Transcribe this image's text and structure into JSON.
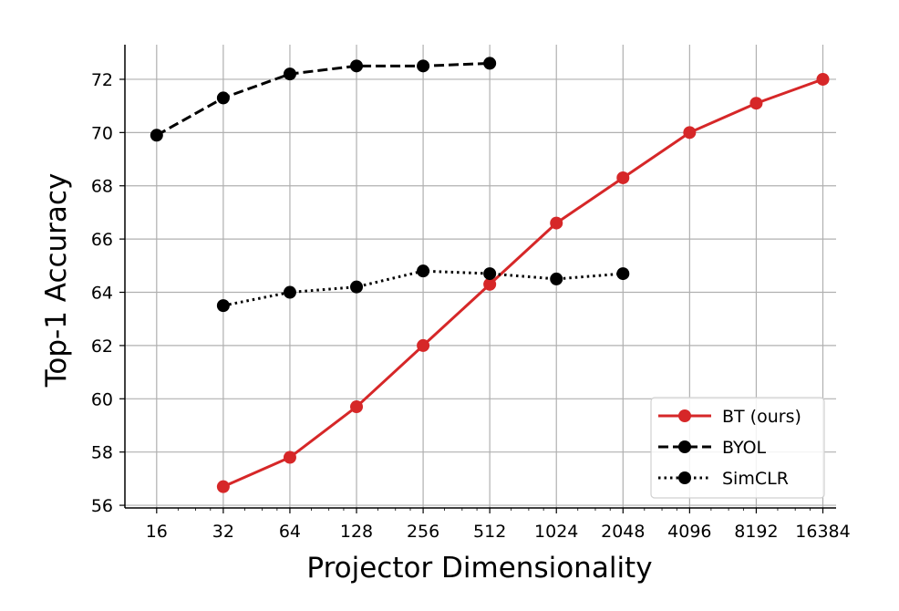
{
  "chart_data": {
    "type": "line",
    "xlabel": "Projector Dimensionality",
    "ylabel": "Top-1 Accuracy",
    "x_scale": "log2",
    "x_ticks": [
      "16",
      "32",
      "64",
      "128",
      "256",
      "512",
      "1024",
      "2048",
      "4096",
      "8192",
      "16384"
    ],
    "x_tick_values": [
      16,
      32,
      64,
      128,
      256,
      512,
      1024,
      2048,
      4096,
      8192,
      16384
    ],
    "y_ticks": [
      "56",
      "58",
      "60",
      "62",
      "64",
      "66",
      "68",
      "70",
      "72"
    ],
    "ylim": [
      55.9,
      73.3
    ],
    "xlim": [
      11.5,
      18800
    ],
    "grid": true,
    "legend_position": "lower-right",
    "series": [
      {
        "name": "BT (ours)",
        "color": "#d62728",
        "linestyle": "solid",
        "x": [
          32,
          64,
          128,
          256,
          512,
          1024,
          2048,
          4096,
          8192,
          16384
        ],
        "y": [
          56.7,
          57.8,
          59.7,
          62.0,
          64.3,
          66.6,
          68.3,
          70.0,
          71.1,
          72.0
        ]
      },
      {
        "name": "BYOL",
        "color": "#000000",
        "linestyle": "dashed",
        "x": [
          16,
          32,
          64,
          128,
          256,
          512
        ],
        "y": [
          69.9,
          71.3,
          72.2,
          72.5,
          72.5,
          72.6
        ]
      },
      {
        "name": "SimCLR",
        "color": "#000000",
        "linestyle": "dotted",
        "x": [
          32,
          64,
          128,
          256,
          512,
          1024,
          2048
        ],
        "y": [
          63.5,
          64.0,
          64.2,
          64.8,
          64.7,
          64.5,
          64.7
        ]
      }
    ]
  }
}
